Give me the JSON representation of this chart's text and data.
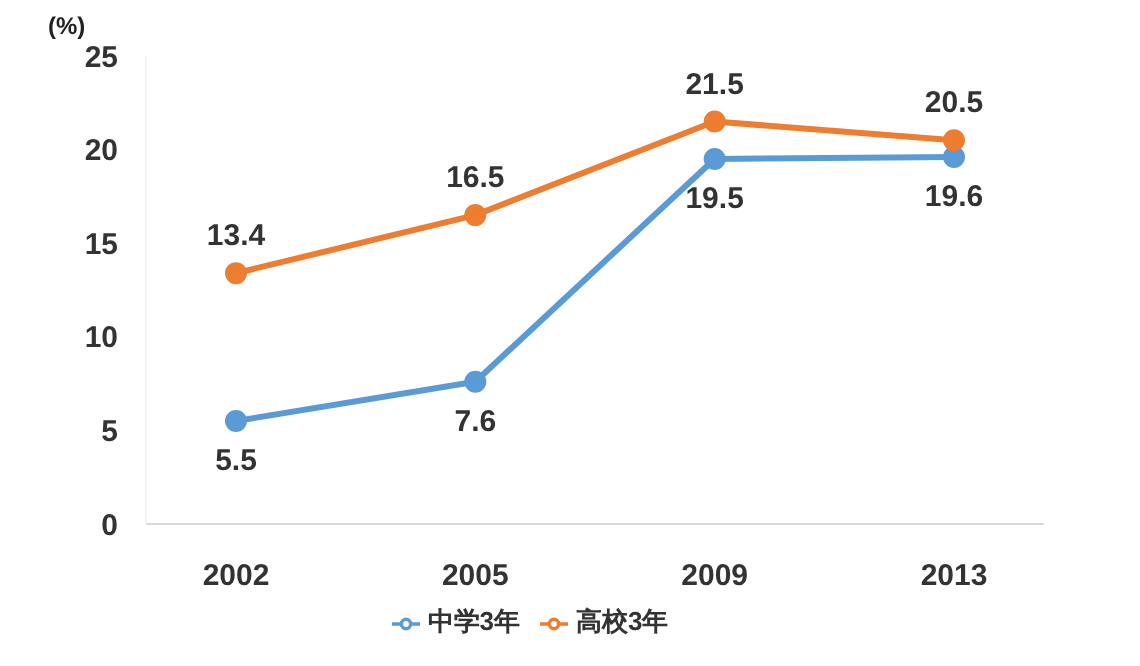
{
  "chart_data": {
    "type": "line",
    "ylabel": "(%)",
    "categories": [
      "2002",
      "2005",
      "2009",
      "2013"
    ],
    "series": [
      {
        "name": "中学3年",
        "color": "#5b9bd5",
        "values": [
          5.5,
          7.6,
          19.5,
          19.6
        ]
      },
      {
        "name": "高校3年",
        "color": "#ed7d31",
        "values": [
          13.4,
          16.5,
          21.5,
          20.5
        ]
      }
    ],
    "ylim": [
      0,
      25
    ],
    "yticks": [
      0,
      5,
      10,
      15,
      20,
      25
    ],
    "grid": false,
    "legend": "bottom",
    "marker": "circle",
    "line_style": "solid",
    "data_labels": true
  }
}
